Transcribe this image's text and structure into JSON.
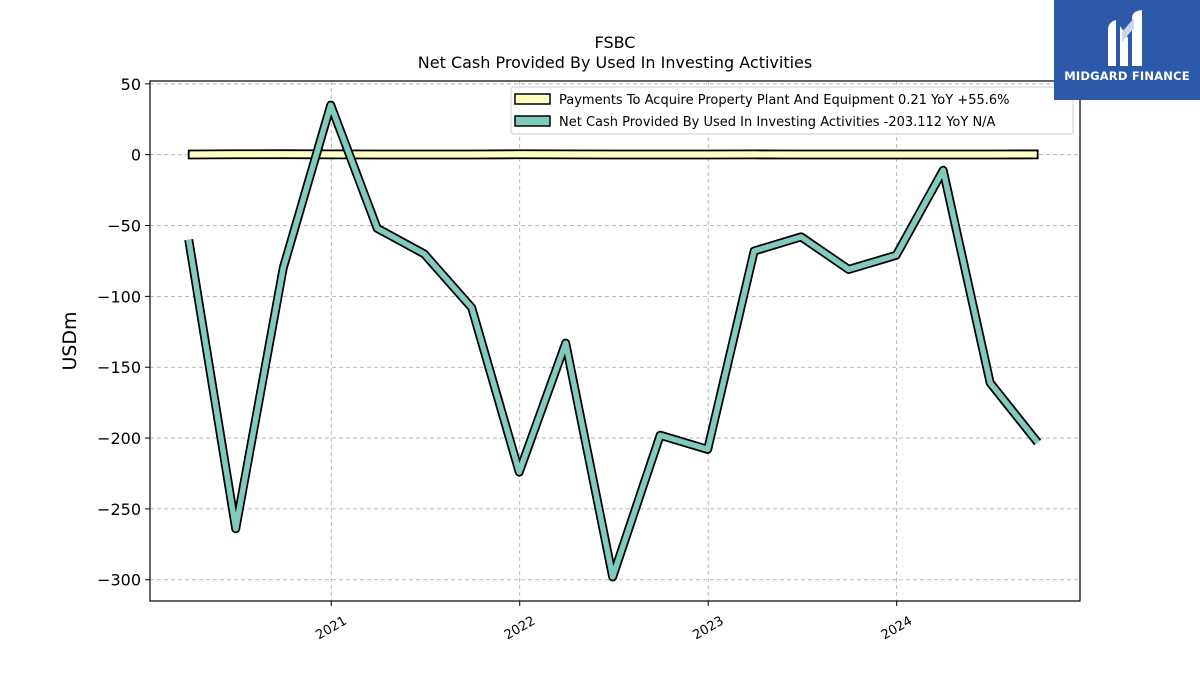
{
  "chart_data": {
    "type": "line",
    "title": "FSBC",
    "subtitle": "Net Cash Provided By Used In Investing Activities",
    "ylabel": "USDm",
    "xlabel": "",
    "ylim": [
      -315,
      52
    ],
    "xlim": [
      "2020-01-16",
      "2024-12-21"
    ],
    "yticks": [
      50,
      0,
      -50,
      -100,
      -150,
      -200,
      -250,
      -300
    ],
    "ytick_labels": [
      "50",
      "0",
      "−50",
      "−100",
      "−150",
      "−200",
      "−250",
      "−300"
    ],
    "xticks": [
      "2021-01-01",
      "2022-01-01",
      "2023-01-01",
      "2024-01-01"
    ],
    "xtick_labels": [
      "2021",
      "2022",
      "2023",
      "2024"
    ],
    "grid": true,
    "legend_position": "top-right",
    "x": [
      "2020-03-31",
      "2020-06-30",
      "2020-09-30",
      "2020-12-31",
      "2021-03-31",
      "2021-06-30",
      "2021-09-30",
      "2021-12-31",
      "2022-03-31",
      "2022-06-30",
      "2022-09-30",
      "2022-12-31",
      "2023-03-31",
      "2023-06-30",
      "2023-09-30",
      "2023-12-31",
      "2024-03-31",
      "2024-06-30",
      "2024-09-30"
    ],
    "series": [
      {
        "name": "Payments To Acquire Property Plant And Equipment  0.21 YoY +55.6%",
        "color": "#ffffbf",
        "style": "band",
        "values": [
          0.15,
          0.3,
          0.35,
          0.2,
          0.1,
          0.1,
          0.12,
          0.3,
          0.2,
          0.1,
          0.1,
          0.1,
          0.2,
          0.1,
          0.1,
          0.1,
          0.1,
          0.15,
          0.21
        ]
      },
      {
        "name": "Net Cash Provided By Used In Investing Activities  -203.112 YoY N/A",
        "color": "#80cbbe",
        "style": "line",
        "values": [
          -60,
          -264,
          -80,
          35,
          -52,
          -70,
          -108,
          -224,
          -133,
          -298,
          -198,
          -208,
          -68,
          -58,
          -81,
          -71,
          -11,
          -161,
          -203.112
        ]
      }
    ]
  },
  "brand": {
    "name": "MIDGARD FINANCE",
    "icon": "midgard-logo-icon",
    "color": "#2c5aa8"
  }
}
